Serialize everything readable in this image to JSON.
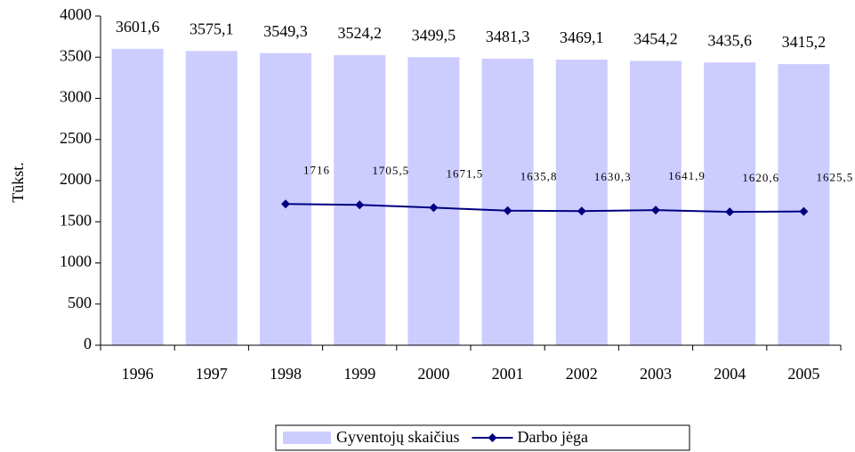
{
  "chart_data": {
    "type": "bar",
    "y_label": "Tūkst.",
    "categories": [
      "1996",
      "1997",
      "1998",
      "1999",
      "2000",
      "2001",
      "2002",
      "2003",
      "2004",
      "2005"
    ],
    "series": [
      {
        "name": "Gyventojų skaičius",
        "type": "bar",
        "color": "#ccccff",
        "values": [
          3601.6,
          3575.1,
          3549.3,
          3524.2,
          3499.5,
          3481.3,
          3469.1,
          3454.2,
          3435.6,
          3415.2
        ],
        "value_labels": [
          "3601,6",
          "3575,1",
          "3549,3",
          "3524,2",
          "3499,5",
          "3481,3",
          "3469,1",
          "3454,2",
          "3435,6",
          "3415,2"
        ]
      },
      {
        "name": "Darbo jėga",
        "type": "line",
        "color": "#000080",
        "values": [
          null,
          null,
          1716,
          1705.5,
          1671.5,
          1635.8,
          1630.3,
          1641.9,
          1620.6,
          1625.5
        ],
        "value_labels": [
          null,
          null,
          "1716",
          "1705,5",
          "1671,5",
          "1635,8",
          "1630,3",
          "1641,9",
          "1620,6",
          "1625,5"
        ]
      }
    ],
    "ylim": [
      0,
      4000
    ],
    "yticks": [
      0,
      500,
      1000,
      1500,
      2000,
      2500,
      3000,
      3500,
      4000
    ],
    "grid": false,
    "legend": "bottom"
  }
}
